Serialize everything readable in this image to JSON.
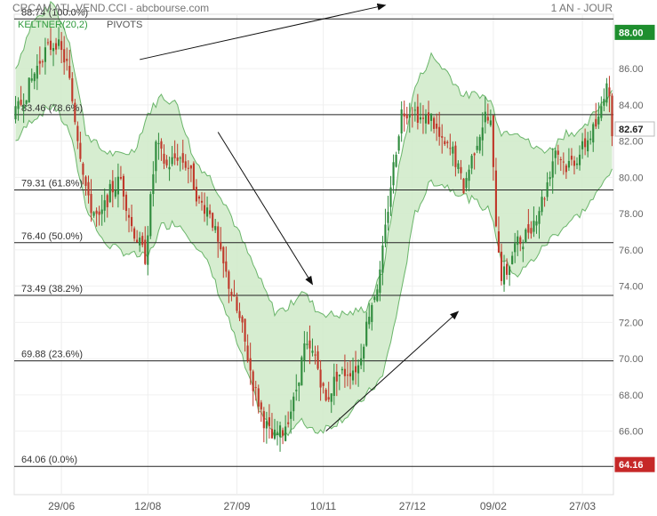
{
  "header": {
    "title": "CRCAM ATL.VEND.CCI - abcbourse.com",
    "period": "1 AN - JOUR"
  },
  "legend": {
    "keltner": "KELTNER(20,2)",
    "pivots": "PIVOTS"
  },
  "colors": {
    "up_candle": "#2e8b3c",
    "down_candle": "#c0392b",
    "keltner_fill": "#cfeac8",
    "keltner_line": "#6ab56a",
    "last_price_badge": "#c62828",
    "high_badge": "#1e8e2e"
  },
  "chart_data": {
    "type": "candlestick",
    "y_range": [
      62.5,
      89.0
    ],
    "y_ticks": [
      66,
      68,
      70,
      72,
      74,
      76,
      78,
      80,
      82,
      84,
      86
    ],
    "y_tick_labels": [
      "66.00",
      "68.00",
      "70.00",
      "72.00",
      "74.00",
      "76.00",
      "78.00",
      "80.00",
      "82.00",
      "84.00",
      "86.00"
    ],
    "x_ticks": [
      {
        "label": "29/06",
        "idx": 17
      },
      {
        "label": "12/08",
        "idx": 49
      },
      {
        "label": "27/09",
        "idx": 82
      },
      {
        "label": "10/11",
        "idx": 114
      },
      {
        "label": "27/12",
        "idx": 147
      },
      {
        "label": "09/02",
        "idx": 177
      },
      {
        "label": "27/03",
        "idx": 210
      }
    ],
    "fib_levels": [
      {
        "value": 88.74,
        "label": "88.74  (100.0%)"
      },
      {
        "value": 83.46,
        "label": "83.46  (78.6%)"
      },
      {
        "value": 79.31,
        "label": "79.31  (61.8%)"
      },
      {
        "value": 76.4,
        "label": "76.40  (50.0%)"
      },
      {
        "value": 73.49,
        "label": "73.49  (38.2%)"
      },
      {
        "value": 69.88,
        "label": "69.88  (23.6%)"
      },
      {
        "value": 64.06,
        "label": "64.06  (0.0%)"
      }
    ],
    "badges": [
      {
        "value": 88.0,
        "label": "88.00",
        "kind": "high"
      },
      {
        "value": 82.67,
        "label": "82.67",
        "kind": "current"
      },
      {
        "value": 64.16,
        "label": "64.16",
        "kind": "low"
      }
    ],
    "trend_arrows": [
      {
        "from": [
          46,
          86.5
        ],
        "to": [
          137,
          89.5
        ]
      },
      {
        "from": [
          75,
          82.5
        ],
        "to": [
          110,
          74.1
        ]
      },
      {
        "from": [
          115,
          66.0
        ],
        "to": [
          164,
          72.6
        ]
      }
    ],
    "price_anchors": [
      [
        0,
        83.5
      ],
      [
        4,
        84.7
      ],
      [
        10,
        86.8
      ],
      [
        15,
        87.5
      ],
      [
        19,
        86.2
      ],
      [
        23,
        82.3
      ],
      [
        27,
        78.6
      ],
      [
        31,
        77.6
      ],
      [
        35,
        79.2
      ],
      [
        39,
        79.9
      ],
      [
        43,
        77.3
      ],
      [
        48,
        75.6
      ],
      [
        52,
        81.8
      ],
      [
        56,
        80.6
      ],
      [
        60,
        81.2
      ],
      [
        64,
        80.6
      ],
      [
        68,
        78.6
      ],
      [
        72,
        78.2
      ],
      [
        76,
        75.6
      ],
      [
        80,
        73.6
      ],
      [
        84,
        71.6
      ],
      [
        88,
        68.6
      ],
      [
        92,
        66.6
      ],
      [
        95,
        65.6
      ],
      [
        99,
        66.0
      ],
      [
        103,
        67.6
      ],
      [
        107,
        70.6
      ],
      [
        111,
        70.1
      ],
      [
        115,
        67.6
      ],
      [
        119,
        69.1
      ],
      [
        123,
        69.3
      ],
      [
        127,
        69.6
      ],
      [
        131,
        72.6
      ],
      [
        135,
        74.6
      ],
      [
        139,
        79.6
      ],
      [
        143,
        83.6
      ],
      [
        147,
        83.8
      ],
      [
        151,
        83.1
      ],
      [
        154,
        83.3
      ],
      [
        158,
        81.8
      ],
      [
        162,
        81.4
      ],
      [
        166,
        79.4
      ],
      [
        170,
        81.6
      ],
      [
        174,
        83.4
      ],
      [
        176,
        82.9
      ],
      [
        178,
        77.6
      ],
      [
        180,
        74.6
      ],
      [
        182,
        74.8
      ],
      [
        185,
        76.2
      ],
      [
        188,
        76.6
      ],
      [
        192,
        77.6
      ],
      [
        196,
        79.1
      ],
      [
        200,
        81.6
      ],
      [
        204,
        80.6
      ],
      [
        208,
        81.1
      ],
      [
        212,
        82.1
      ],
      [
        216,
        83.1
      ],
      [
        219,
        85.5
      ],
      [
        221,
        82.7
      ]
    ],
    "keltner_upper_anchors": [
      [
        0,
        86.0
      ],
      [
        6,
        88.5
      ],
      [
        14,
        89.6
      ],
      [
        20,
        87.5
      ],
      [
        26,
        82.5
      ],
      [
        32,
        81.5
      ],
      [
        38,
        81.2
      ],
      [
        44,
        81.5
      ],
      [
        49,
        83.5
      ],
      [
        54,
        84.5
      ],
      [
        60,
        84.0
      ],
      [
        66,
        81.0
      ],
      [
        72,
        80.0
      ],
      [
        78,
        78.5
      ],
      [
        84,
        76.5
      ],
      [
        90,
        74.5
      ],
      [
        96,
        72.6
      ],
      [
        101,
        72.8
      ],
      [
        106,
        73.8
      ],
      [
        112,
        72.6
      ],
      [
        118,
        72.4
      ],
      [
        124,
        72.5
      ],
      [
        130,
        72.8
      ],
      [
        136,
        74.8
      ],
      [
        142,
        80.5
      ],
      [
        148,
        85.0
      ],
      [
        154,
        86.7
      ],
      [
        160,
        85.8
      ],
      [
        166,
        84.5
      ],
      [
        172,
        84.6
      ],
      [
        176,
        84.2
      ],
      [
        180,
        82.5
      ],
      [
        186,
        82.6
      ],
      [
        192,
        81.6
      ],
      [
        198,
        81.5
      ],
      [
        204,
        82.5
      ],
      [
        210,
        82.5
      ],
      [
        216,
        83.9
      ],
      [
        221,
        84.8
      ]
    ],
    "keltner_lower_anchors": [
      [
        0,
        82.0
      ],
      [
        6,
        83.2
      ],
      [
        14,
        84.0
      ],
      [
        20,
        82.5
      ],
      [
        26,
        78.5
      ],
      [
        32,
        76.5
      ],
      [
        38,
        76.0
      ],
      [
        44,
        75.7
      ],
      [
        49,
        75.6
      ],
      [
        54,
        77.3
      ],
      [
        60,
        77.5
      ],
      [
        66,
        76.5
      ],
      [
        72,
        75.0
      ],
      [
        78,
        72.5
      ],
      [
        84,
        70.0
      ],
      [
        90,
        67.3
      ],
      [
        96,
        65.7
      ],
      [
        101,
        66.0
      ],
      [
        106,
        66.5
      ],
      [
        112,
        66.0
      ],
      [
        118,
        66.4
      ],
      [
        124,
        67.0
      ],
      [
        130,
        68.0
      ],
      [
        136,
        69.0
      ],
      [
        142,
        73.0
      ],
      [
        148,
        78.0
      ],
      [
        154,
        79.8
      ],
      [
        160,
        79.5
      ],
      [
        166,
        79.0
      ],
      [
        172,
        78.5
      ],
      [
        176,
        78.1
      ],
      [
        180,
        75.5
      ],
      [
        186,
        74.6
      ],
      [
        192,
        75.5
      ],
      [
        198,
        76.6
      ],
      [
        204,
        77.4
      ],
      [
        210,
        78.1
      ],
      [
        216,
        79.2
      ],
      [
        221,
        80.6
      ]
    ],
    "n_bars": 222
  }
}
